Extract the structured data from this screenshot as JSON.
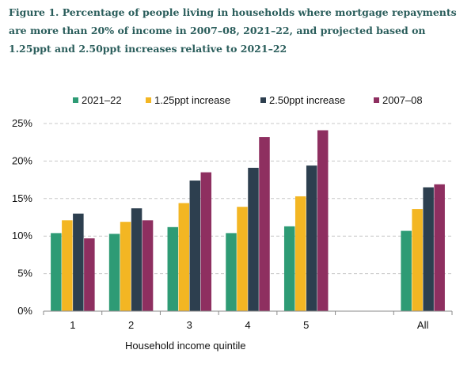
{
  "chart_data": {
    "type": "bar",
    "title": "Figure 1. Percentage of people living in households where mortgage repayments are more than 20% of income in 2007–08, 2021–22, and projected based on 1.25ppt and 2.50ppt increases relative to 2021–22",
    "xlabel": "Household income quintile",
    "ylabel": "",
    "categories": [
      "1",
      "2",
      "3",
      "4",
      "5",
      "All"
    ],
    "series": [
      {
        "name": "2021–22",
        "color": "#2e9b75",
        "values": [
          10.4,
          10.3,
          11.2,
          10.4,
          11.3,
          10.7
        ]
      },
      {
        "name": "1.25ppt increase",
        "color": "#f3b623",
        "values": [
          12.1,
          11.9,
          14.4,
          13.9,
          15.3,
          13.6
        ]
      },
      {
        "name": "2.50ppt increase",
        "color": "#2d3f4f",
        "values": [
          13.0,
          13.7,
          17.4,
          19.1,
          19.4,
          16.5
        ]
      },
      {
        "name": "2007–08",
        "color": "#8e2f60",
        "values": [
          9.7,
          12.1,
          18.5,
          23.2,
          24.1,
          16.9
        ]
      }
    ],
    "ylim": [
      0,
      25
    ],
    "yticks": [
      "0%",
      "5%",
      "10%",
      "15%",
      "20%",
      "25%"
    ],
    "grid": true,
    "legend": "top"
  }
}
